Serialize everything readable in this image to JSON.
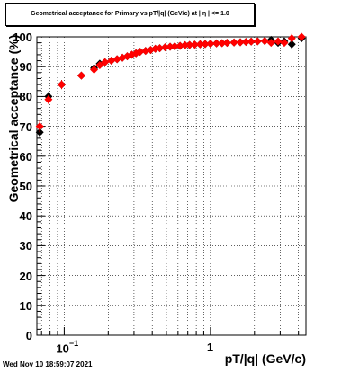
{
  "chart_data": {
    "type": "scatter",
    "title": "Geometrical acceptance for Primary vs pT/|q| (GeV/c) at |   η | <= 1.0",
    "xlabel": "pT/|q| (GeV/c)",
    "ylabel": "Geometrical acceptance (%)",
    "x_scale": "log",
    "xlim": [
      0.065,
      4.5
    ],
    "ylim": [
      0,
      100
    ],
    "grid": true,
    "y_ticks": [
      "0",
      "10",
      "20",
      "30",
      "40",
      "50",
      "60",
      "70",
      "80",
      "90",
      "100"
    ],
    "x_ticks": [
      {
        "base": "10",
        "exp": "−1",
        "value": 0.1
      },
      {
        "base": "1",
        "exp": "",
        "value": 1
      }
    ],
    "series": [
      {
        "marker": "diamond",
        "color": "#000000",
        "x": [
          0.068,
          0.078,
          0.096,
          0.131,
          0.16,
          0.175,
          0.19,
          0.21,
          0.23,
          0.25,
          0.27,
          0.29,
          0.31,
          0.33,
          0.36,
          0.39,
          0.42,
          0.45,
          0.49,
          0.53,
          0.57,
          0.62,
          0.67,
          0.72,
          0.78,
          0.85,
          0.92,
          1.0,
          1.1,
          1.2,
          1.3,
          1.45,
          1.6,
          1.75,
          1.9,
          2.1,
          2.35,
          2.6,
          2.9,
          3.2,
          3.6,
          4.2
        ],
        "y": [
          68,
          80,
          84,
          87,
          89.5,
          91,
          91.5,
          92,
          92.5,
          93,
          93.5,
          94,
          94.5,
          95,
          95.3,
          95.6,
          96,
          96.2,
          96.5,
          96.7,
          96.8,
          97,
          97.2,
          97.3,
          97.4,
          97.5,
          97.6,
          97.7,
          97.8,
          97.9,
          98,
          98.1,
          98.2,
          98.3,
          98.4,
          98.5,
          98.6,
          99,
          98,
          98.5,
          97.5,
          99.5
        ],
        "yerr_low": [
          2,
          1.5,
          1.5,
          1,
          1,
          0.8,
          0.7,
          0.7,
          0.6,
          0.5,
          0.5,
          0.5,
          0.5,
          0.4,
          0.4,
          0.4,
          0.4,
          0.4,
          0.3,
          0.3,
          0.3,
          0.3,
          0.3,
          0.3,
          0.3,
          0.3,
          0.3,
          0.3,
          0.3,
          0.3,
          0.3,
          0.3,
          0.4,
          0.4,
          0.5,
          0.5,
          0.6,
          0.8,
          1,
          1.2,
          1.5,
          0.5
        ],
        "yerr_high": [
          2,
          1.5,
          1.5,
          1,
          1,
          0.8,
          0.7,
          0.7,
          0.6,
          0.5,
          0.5,
          0.5,
          0.5,
          0.4,
          0.4,
          0.4,
          0.4,
          0.4,
          0.3,
          0.3,
          0.3,
          0.3,
          0.3,
          0.3,
          0.3,
          0.3,
          0.3,
          0.3,
          0.3,
          0.3,
          0.3,
          0.3,
          0.4,
          0.4,
          0.5,
          0.5,
          0.6,
          0.8,
          1,
          1.2,
          1.5,
          0.5
        ]
      },
      {
        "marker": "diamond",
        "color": "#ff0000",
        "x": [
          0.068,
          0.078,
          0.096,
          0.131,
          0.16,
          0.175,
          0.19,
          0.21,
          0.23,
          0.25,
          0.27,
          0.29,
          0.31,
          0.33,
          0.36,
          0.39,
          0.42,
          0.45,
          0.49,
          0.53,
          0.57,
          0.62,
          0.67,
          0.72,
          0.78,
          0.85,
          0.92,
          1.0,
          1.1,
          1.2,
          1.3,
          1.45,
          1.6,
          1.75,
          1.9,
          2.1,
          2.35,
          2.6,
          2.9,
          3.2,
          3.6,
          4.2
        ],
        "y": [
          70,
          79,
          84,
          87,
          89,
          90.5,
          91.5,
          92,
          92.5,
          93,
          93.5,
          94,
          94.5,
          95,
          95.3,
          95.6,
          96,
          96.2,
          96.5,
          96.7,
          96.8,
          97,
          97.2,
          97.3,
          97.4,
          97.5,
          97.6,
          97.7,
          97.8,
          97.9,
          98,
          98.1,
          98.2,
          98.3,
          98.4,
          98.5,
          98.6,
          98,
          98.5,
          98,
          99.5,
          100
        ],
        "yerr_low": [
          2,
          1.5,
          1.5,
          1,
          1,
          0.8,
          0.7,
          0.7,
          0.6,
          0.5,
          0.5,
          0.5,
          0.5,
          0.4,
          0.4,
          0.4,
          0.4,
          0.4,
          0.3,
          0.3,
          0.3,
          0.3,
          0.3,
          0.3,
          0.3,
          0.3,
          0.3,
          0.3,
          0.3,
          0.3,
          0.3,
          0.3,
          0.4,
          0.4,
          0.5,
          0.5,
          0.6,
          0.8,
          1,
          1.2,
          1.5,
          0.5
        ],
        "yerr_high": [
          2,
          1.5,
          1.5,
          1,
          1,
          0.8,
          0.7,
          0.7,
          0.6,
          0.5,
          0.5,
          0.5,
          0.5,
          0.4,
          0.4,
          0.4,
          0.4,
          0.4,
          0.3,
          0.3,
          0.3,
          0.3,
          0.3,
          0.3,
          0.3,
          0.3,
          0.3,
          0.3,
          0.3,
          0.3,
          0.3,
          0.3,
          0.4,
          0.4,
          0.5,
          0.5,
          0.6,
          0.8,
          1,
          1.2,
          1.5,
          0.5
        ]
      }
    ]
  },
  "footer": {
    "timestamp": "Wed Nov 10 18:59:07 2021"
  }
}
